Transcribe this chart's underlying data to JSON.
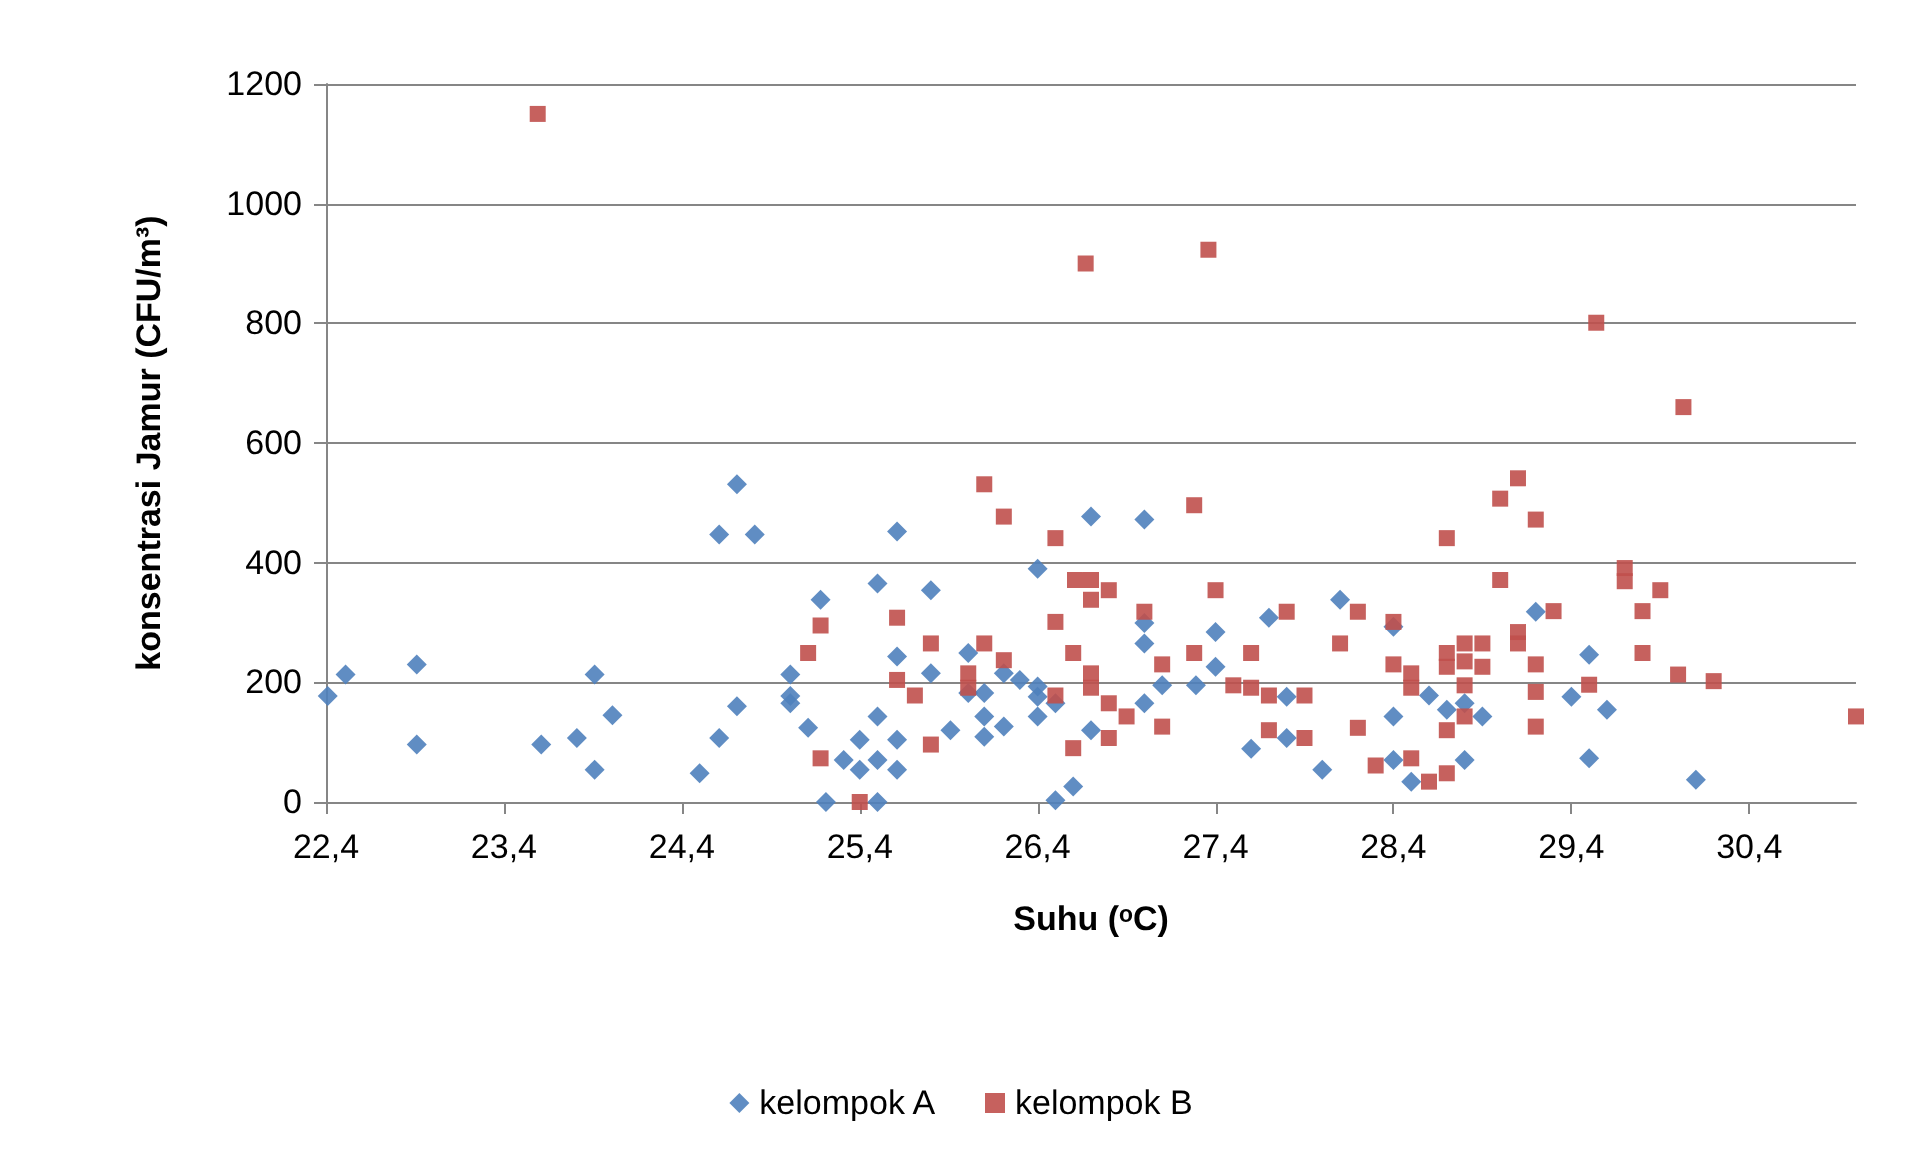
{
  "chart_data": {
    "type": "scatter",
    "xlabel": "Suhu (ᵒC)",
    "ylabel": "konsentrasi Jamur (CFU/m³)",
    "xlim": [
      22.4,
      31
    ],
    "ylim": [
      0,
      1200
    ],
    "xticks": [
      {
        "value": 22.4,
        "label": "22,4"
      },
      {
        "value": 23.4,
        "label": "23,4"
      },
      {
        "value": 24.4,
        "label": "24,4"
      },
      {
        "value": 25.4,
        "label": "25,4"
      },
      {
        "value": 26.4,
        "label": "26,4"
      },
      {
        "value": 27.4,
        "label": "27,4"
      },
      {
        "value": 28.4,
        "label": "28,4"
      },
      {
        "value": 29.4,
        "label": "29,4"
      },
      {
        "value": 30.4,
        "label": "30,4"
      }
    ],
    "yticks": [
      0,
      200,
      400,
      600,
      800,
      1000,
      1200
    ],
    "grid": "y",
    "legend": "bottom",
    "series": [
      {
        "name": "kelompok A",
        "color": "#4f81bd",
        "marker": "diamond",
        "x": [
          22.41,
          22.51,
          22.91,
          22.91,
          23.61,
          23.81,
          23.91,
          24.01,
          23.91,
          24.5,
          24.61,
          24.71,
          24.71,
          24.61,
          24.81,
          25.01,
          25.01,
          25.01,
          25.11,
          25.18,
          25.61,
          25.5,
          25.8,
          25.21,
          25.31,
          25.4,
          25.5,
          25.5,
          25.4,
          25.61,
          25.61,
          25.5,
          25.61,
          25.8,
          25.91,
          26.01,
          26.01,
          26.1,
          26.1,
          26.1,
          26.21,
          26.21,
          26.3,
          26.4,
          26.4,
          26.4,
          26.4,
          26.5,
          26.5,
          26.6,
          26.7,
          26.7,
          27.0,
          27.0,
          27.0,
          27.0,
          27.1,
          27.29,
          27.4,
          27.4,
          27.7,
          27.8,
          27.6,
          27.8,
          28.0,
          28.1,
          28.4,
          28.4,
          28.4,
          28.5,
          28.6,
          28.7,
          28.8,
          28.9,
          28.8,
          29.2,
          29.5,
          29.4,
          29.6,
          29.5,
          30.1
        ],
        "values": [
          177,
          213,
          230,
          96,
          96,
          107,
          213,
          145,
          54,
          48,
          107,
          160,
          531,
          447,
          447,
          213,
          177,
          165,
          124,
          338,
          452,
          365,
          354,
          0,
          70,
          104,
          143,
          70,
          54,
          104,
          54,
          0,
          243,
          215,
          120,
          249,
          182,
          182,
          143,
          109,
          215,
          126,
          204,
          390,
          193,
          176,
          143,
          165,
          3,
          26,
          477,
          120,
          472,
          299,
          265,
          165,
          195,
          195,
          284,
          226,
          308,
          176,
          89,
          107,
          54,
          338,
          293,
          143,
          70,
          34,
          178,
          154,
          165,
          143,
          70,
          318,
          246,
          176,
          154,
          73,
          37
        ]
      },
      {
        "name": "kelompok B",
        "color": "#c0504d",
        "marker": "square",
        "x": [
          23.59,
          26.67,
          27.36,
          29.54,
          30.03,
          25.11,
          25.18,
          25.18,
          25.4,
          26.1,
          26.21,
          26.5,
          26.61,
          26.7,
          26.7,
          26.8,
          27.0,
          26.5,
          25.61,
          25.8,
          26.1,
          26.21,
          25.61,
          25.71,
          26.01,
          26.01,
          26.6,
          26.7,
          26.7,
          26.5,
          26.8,
          26.9,
          27.1,
          27.28,
          27.1,
          26.8,
          26.6,
          25.8,
          27.28,
          27.4,
          27.6,
          27.5,
          27.6,
          27.7,
          27.9,
          27.7,
          27.9,
          27.8,
          28.2,
          28.1,
          28.4,
          28.2,
          28.4,
          28.5,
          28.5,
          28.3,
          28.5,
          28.6,
          28.7,
          28.7,
          29.0,
          29.1,
          29.0,
          28.7,
          28.8,
          28.9,
          28.7,
          28.8,
          28.9,
          28.8,
          28.8,
          28.7,
          29.1,
          29.1,
          29.2,
          29.2,
          29.2,
          29.2,
          29.3,
          29.7,
          29.7,
          29.9,
          29.8,
          29.8,
          29.5,
          30.0,
          30.2,
          31.0
        ],
        "values": [
          1150,
          900,
          923,
          801,
          660,
          249,
          295,
          73,
          0,
          531,
          477,
          441,
          371,
          371,
          338,
          354,
          318,
          301,
          308,
          265,
          265,
          237,
          204,
          178,
          215,
          191,
          249,
          215,
          191,
          178,
          165,
          143,
          230,
          249,
          126,
          107,
          90,
          96,
          496,
          354,
          249,
          195,
          191,
          178,
          178,
          120,
          107,
          318,
          318,
          265,
          301,
          124,
          230,
          215,
          191,
          61,
          73,
          34,
          48,
          441,
          507,
          541,
          371,
          249,
          265,
          265,
          226,
          235,
          226,
          195,
          143,
          120,
          284,
          265,
          472,
          230,
          184,
          126,
          319,
          391,
          369,
          354,
          319,
          249,
          196,
          213,
          202,
          143
        ]
      }
    ]
  }
}
